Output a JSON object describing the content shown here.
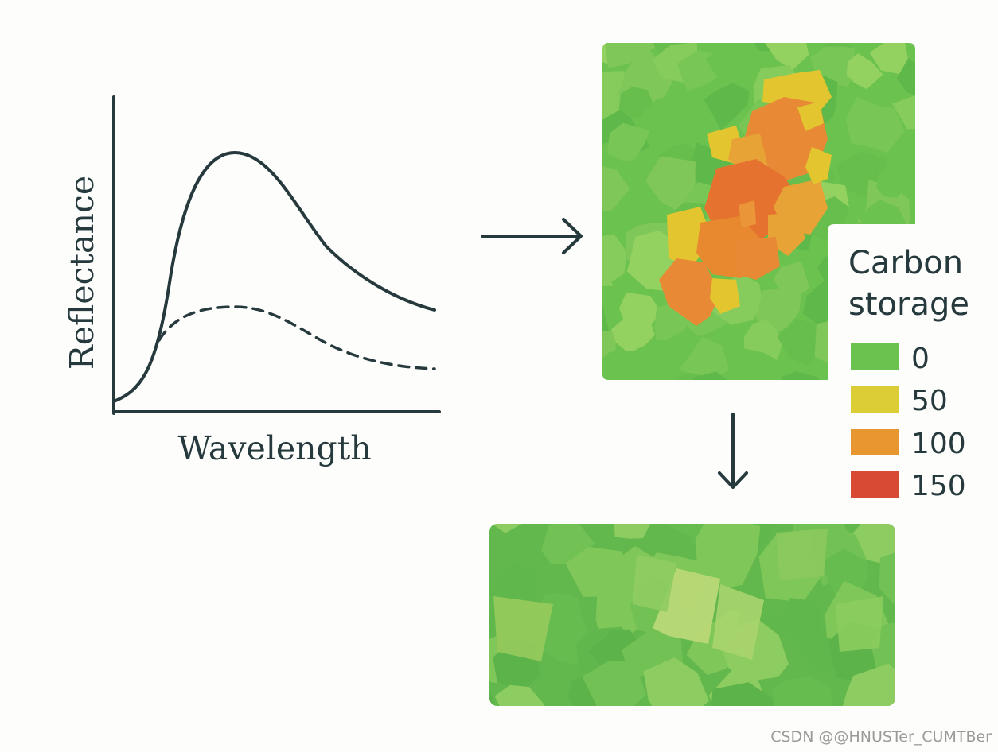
{
  "spectrum_plot": {
    "y_label": "Reflectance",
    "x_label": "Wavelength",
    "curves": [
      {
        "name": "high-reflectance-curve",
        "style": "solid"
      },
      {
        "name": "low-reflectance-curve",
        "style": "dashed"
      }
    ]
  },
  "legend": {
    "title_line1": "Carbon",
    "title_line2": "storage",
    "items": [
      {
        "label": "0",
        "color": "#6cc24f"
      },
      {
        "label": "50",
        "color": "#dccc35"
      },
      {
        "label": "100",
        "color": "#e8962f"
      },
      {
        "label": "150",
        "color": "#d94a35"
      }
    ]
  },
  "colors": {
    "ink": "#263a3e",
    "map_green": "#6cc24f",
    "map_yellow": "#e3c62f",
    "map_orange": "#e88a35"
  },
  "watermark": "CSDN @@HNUSTer_CUMTBer"
}
